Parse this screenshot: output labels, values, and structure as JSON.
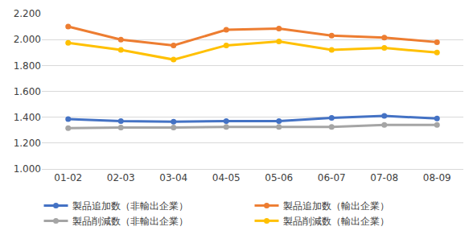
{
  "chart_data": {
    "type": "line",
    "categories": [
      "01-02",
      "02-03",
      "03-04",
      "04-05",
      "05-06",
      "06-07",
      "07-08",
      "08-09"
    ],
    "series": [
      {
        "name": "製品追加数（非輸出企業）",
        "color": "#4472c4",
        "values": [
          1.385,
          1.37,
          1.365,
          1.37,
          1.37,
          1.395,
          1.41,
          1.39
        ]
      },
      {
        "name": "製品追加数（輸出企業）",
        "color": "#ed7d31",
        "values": [
          2.1,
          2.0,
          1.955,
          2.075,
          2.085,
          2.03,
          2.015,
          1.98
        ]
      },
      {
        "name": "製品削減数（非輸出企業）",
        "color": "#a5a5a5",
        "values": [
          1.315,
          1.32,
          1.32,
          1.325,
          1.325,
          1.325,
          1.34,
          1.34
        ]
      },
      {
        "name": "製品削減数（輸出企業）",
        "color": "#ffc000",
        "values": [
          1.975,
          1.92,
          1.845,
          1.955,
          1.985,
          1.92,
          1.935,
          1.9
        ]
      }
    ],
    "ylim": [
      1.0,
      2.2
    ],
    "yticks": [
      {
        "value": 1.0,
        "label": "1.000"
      },
      {
        "value": 1.2,
        "label": "1.200"
      },
      {
        "value": 1.4,
        "label": "1.400"
      },
      {
        "value": 1.6,
        "label": "1.600"
      },
      {
        "value": 1.8,
        "label": "1.800"
      },
      {
        "value": 2.0,
        "label": "2.000"
      },
      {
        "value": 2.2,
        "label": "2.200"
      }
    ],
    "grid": true,
    "legend": "bottom",
    "marker": "circle"
  }
}
